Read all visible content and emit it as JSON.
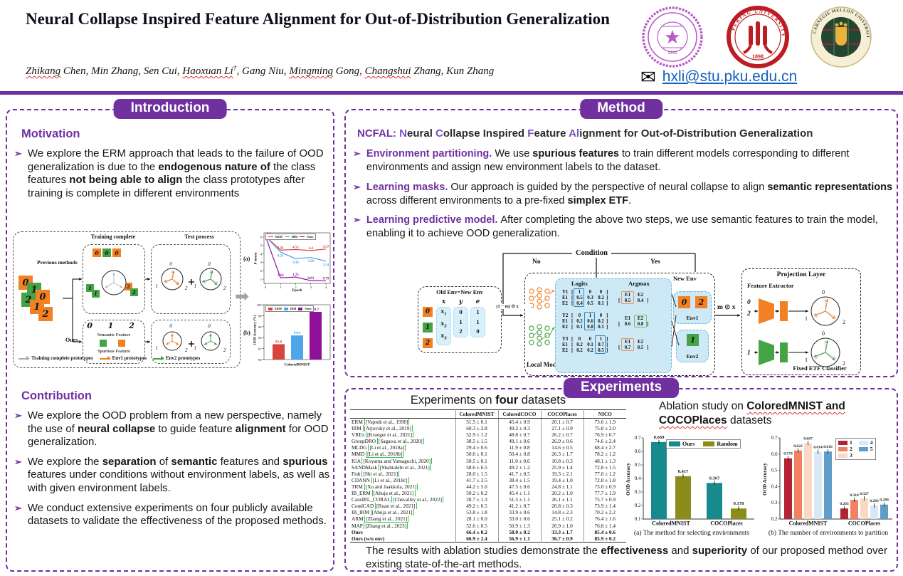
{
  "header": {
    "title": "Neural Collapse Inspired Feature Alignment for Out-of-Distribution Generalization",
    "author_segments": [
      {
        "t": "Zhikang",
        "w": true
      },
      {
        "t": " Chen, Min Zhang, Sen Cui, "
      },
      {
        "t": "Haoxuan Li",
        "w": true
      },
      {
        "t": "†",
        "sup": true
      },
      {
        "t": ", Gang Niu, "
      },
      {
        "t": "Mingming",
        "w": true
      },
      {
        "t": " Gong, "
      },
      {
        "t": "Changshui",
        "w": true
      },
      {
        "t": " Zhang, Kun Zhang"
      }
    ],
    "email": "hxli@stu.pku.edu.cn",
    "email_icon": "✉",
    "logos": [
      {
        "name": "Tsinghua University",
        "year": "1911",
        "ring": "TSINGHUA UNIVERSITY"
      },
      {
        "name": "Peking University",
        "year": "1898",
        "ring": "PEKING UNIVERSITY"
      },
      {
        "name": "Carnegie Mellon University",
        "year": "",
        "ring": "CARNEGIE MELLON UNIVERSITY"
      }
    ]
  },
  "intro": {
    "badge": "Introduction",
    "motivation_title": "Motivation",
    "motivation_bullet": "We explore the ERM approach that leads to the failure of OOD generalization is due to the **endogenous nature of** the class features **not being able to align** the class prototypes after training is complete in different environments",
    "contribution_title": "Contribution",
    "contribution_bullets": [
      "We explore the OOD problem from a new perspective, namely the use of **neural collapse** to guide feature **alignment** for OOD generalization.",
      "We explore the **separation** of **semantic** features and **spurious** features under conditions without environment labels, as well as with given environment labels.",
      "We conduct extensive experiments on four publicly available datasets to validate the effectiveness of the proposed methods."
    ],
    "figure": {
      "training_complete": "Training complete",
      "test_process": "Test process",
      "previous_methods": "Previous methods",
      "ours": "Ours",
      "semantic_feature": "Semantic Feature",
      "spurious_feature": "Spurious Feature",
      "semantic_digits": [
        "0",
        "1",
        "2"
      ],
      "stack_tiles": [
        "0o",
        "1g",
        "0o",
        "2g",
        "1o",
        "2o"
      ],
      "prev_top": [
        "0o",
        "0g",
        "0o"
      ],
      "prev_left": [
        "1g",
        "1g"
      ],
      "prev_right": [
        "2o",
        "2g"
      ],
      "arrow_icon": "➡",
      "legend": [
        {
          "label": "Training complete prototypes",
          "color": "#ababab"
        },
        {
          "label": "Env1 prototypes",
          "color": "#F28124"
        },
        {
          "label": "Env2 prototypes",
          "color": "#44A344"
        }
      ]
    }
  },
  "method": {
    "badge": "Method",
    "ncfal_prefix": "NCFAL:",
    "ncfal_segments": [
      {
        "t": "N",
        "h": true
      },
      {
        "t": "eural "
      },
      {
        "t": "C",
        "h": true
      },
      {
        "t": "ollapse Inspired "
      },
      {
        "t": "F",
        "h": true
      },
      {
        "t": "eature "
      },
      {
        "t": "Al",
        "h": true
      },
      {
        "t": "ignment for Out-of-Distribution Generalization"
      }
    ],
    "bullets": [
      {
        "lead": "Environment partitioning.",
        "text": "We use **spurious features** to train different models corresponding to different environments and assign new environment labels to the dataset."
      },
      {
        "lead": "Learning masks.",
        "text": "Our approach is guided by the perspective of neural collapse to align **semantic representations** across different environments to a pre-fixed **simplex ETF**."
      },
      {
        "lead": "Learning predictive model.",
        "text": "After completing the above two steps, we use semantic features to train the model, enabling it to achieve OOD generalization."
      }
    ],
    "diagram": {
      "condition": "Condition",
      "no": "No",
      "yes": "Yes",
      "old_env_label": "Old Env=New Env",
      "env_table": {
        "digit_tiles": [
          "0o",
          "1g",
          "2o"
        ],
        "headers": [
          "x",
          "y",
          "e"
        ],
        "col_x": [
          "x1",
          "x2",
          "x3"
        ],
        "col_y": [
          "0",
          "1",
          "2"
        ],
        "col_e": [
          "1",
          "1",
          "0"
        ]
      },
      "mask_out": "(1 − m) ⊙ x",
      "local_model": "Local Model",
      "logits_title": "Logits",
      "argmax_title": "Argmax",
      "new_env": "New Env",
      "groups": [
        {
          "labels": [
            "Y1",
            "E1",
            "E2"
          ],
          "rows": [
            [
              "1",
              "0",
              "0"
            ],
            [
              "0.5",
              "0.3",
              "0.2"
            ],
            [
              "0.4",
              "0.5",
              "0.1"
            ]
          ],
          "hl": 0,
          "am": {
            "headers": [
              "E1",
              "E2"
            ],
            "values": [
              "0.5",
              "0.4"
            ],
            "hl": 0,
            "color": "#E8955C"
          }
        },
        {
          "labels": [
            "Y2",
            "E1",
            "E2"
          ],
          "rows": [
            [
              "0",
              "1",
              "0"
            ],
            [
              "0.2",
              "0.6",
              "0.2"
            ],
            [
              "0.1",
              "0.8",
              "0.1"
            ]
          ],
          "hl": 1,
          "am": {
            "headers": [
              "E1",
              "E2"
            ],
            "values": [
              "0.6",
              "0.8"
            ],
            "hl": 1,
            "color": "#7CBF6B"
          }
        },
        {
          "labels": [
            "Y3",
            "E1",
            "E2"
          ],
          "rows": [
            [
              "0",
              "0",
              "1"
            ],
            [
              "0.2",
              "0.1",
              "0.7"
            ],
            [
              "0.2",
              "0.2",
              "0.5"
            ]
          ],
          "hl": 2,
          "am": {
            "headers": [
              "E1",
              "E2"
            ],
            "values": [
              "0.7",
              "0.5"
            ],
            "hl": 0,
            "color": "#E8955C"
          }
        }
      ],
      "env1": {
        "label": "Env1",
        "tiles": [
          "0o",
          "2o"
        ]
      },
      "env2": {
        "label": "Env2",
        "tiles": [
          "1g"
        ]
      },
      "mask_in": "m ⊙ x",
      "projection_layer": "Projection Layer",
      "feature_extractor": "Feature Extractor",
      "fixed_etf": "Fixed ETF Classifier",
      "etf_digits": [
        "0",
        "1",
        "2"
      ],
      "input_digits_top": [
        "0",
        "2"
      ],
      "input_digits_bottom": [
        "1"
      ]
    }
  },
  "experiments": {
    "badge": "Experiments",
    "table_heading": "Experiments on **four** datasets",
    "ablation_heading": "Ablation study on **ColoredMNIST and COCOPlaces** datasets",
    "conclusion": "The results with ablation studies demonstrate the **effectiveness** and **superiority** of our proposed method over existing state-of-the-art methods.",
    "table": {
      "columns": [
        "",
        "ColoredMNIST",
        "ColoredCOCO",
        "COCOPlaces",
        "NICO"
      ],
      "rows": [
        {
          "method": "ERM",
          "cite": "[Vapnik et al., 1998]",
          "vals": [
            "51.5 ± 0.1",
            "45.4 ± 0.9",
            "20.1 ± 0.7",
            "73.6 ± 1.9"
          ]
        },
        {
          "method": "IRM",
          "cite": "[Arjovsky et al., 2019]",
          "vals": [
            "60.3 ± 2.8",
            "49.2 ± 0.3",
            "27.1 ± 0.9",
            "75.8 ± 2.0"
          ]
        },
        {
          "method": "VREx",
          "cite": "[Krueger et al., 2021]",
          "vals": [
            "52.9 ± 1.2",
            "48.8 ± 0.7",
            "26.2 ± 0.7",
            "76.9 ± 0.7"
          ]
        },
        {
          "method": "GroupDRO",
          "cite": "[Sagawa et al., 2020]",
          "vals": [
            "38.5 ± 1.5",
            "49.1 ± 0.6",
            "26.9 ± 0.6",
            "74.6 ± 2.4"
          ]
        },
        {
          "method": "MLDG",
          "cite": "[Li et al., 2018a]",
          "vals": [
            "29.4 ± 0.6",
            "11.9 ± 0.8",
            "14.6 ± 0.5",
            "68.4 ± 2.7"
          ]
        },
        {
          "method": "MMD",
          "cite": "[Li et al., 2018b]",
          "vals": [
            "50.6 ± 0.1",
            "50.4 ± 0.8",
            "26.3 ± 1.7",
            "78.2 ± 1.2"
          ]
        },
        {
          "method": "IGA",
          "cite": "[Koyama and Yamaguchi, 2020]",
          "vals": [
            "50.5 ± 0.1",
            "11.0 ± 0.6",
            "10.8 ± 0.3",
            "48.1 ± 1.3"
          ]
        },
        {
          "method": "SANDMask",
          "cite": "[Shahtalebi et al., 2021]",
          "vals": [
            "58.6 ± 6.5",
            "49.2 ± 1.2",
            "25.9 ± 1.4",
            "72.8 ± 1.5"
          ]
        },
        {
          "method": "Fish",
          "cite": "[Shi et al., 2021]",
          "vals": [
            "28.0 ± 1.5",
            "41.7 ± 0.5",
            "19.3 ± 2.1",
            "77.0 ± 1.2"
          ]
        },
        {
          "method": "CDANN",
          "cite": "[Li et al., 2018c]",
          "vals": [
            "41.7 ± 3.5",
            "38.4 ± 1.5",
            "19.4 ± 1.0",
            "72.8 ± 1.8"
          ]
        },
        {
          "method": "TRM",
          "cite": "[Xu and Jaakkola, 2021]",
          "vals": [
            "44.2 ± 5.0",
            "47.5 ± 0.6",
            "24.8 ± 1.1",
            "73.0 ± 0.9"
          ]
        },
        {
          "method": "IB_ERM",
          "cite": "[Ahuja et al., 2021]",
          "vals": [
            "50.2 ± 0.2",
            "45.4 ± 1.1",
            "20.2 ± 1.0",
            "77.7 ± 1.9"
          ]
        },
        {
          "method": "CausIRL_CORAL",
          "cite": "[Chevalley et al., 2022]",
          "vals": [
            "28.7 ± 1.3",
            "51.5 ± 1.1",
            "26.1 ± 1.1",
            "75.7 ± 0.9"
          ]
        },
        {
          "method": "CondCAD",
          "cite": "[Ruan et al., 2021]",
          "vals": [
            "49.2 ± 0.5",
            "41.2 ± 0.7",
            "20.8 ± 0.3",
            "73.9 ± 1.4"
          ]
        },
        {
          "method": "IB_IRM",
          "cite": "[Ahuja et al., 2021]",
          "vals": [
            "53.8 ± 1.8",
            "33.9 ± 0.6",
            "14.8 ± 2.3",
            "70.2 ± 2.2"
          ]
        },
        {
          "method": "ARM",
          "cite": "[Zhang et al., 2021]",
          "vals": [
            "28.1 ± 0.0",
            "33.0 ± 0.6",
            "25.1 ± 0.2",
            "76.4 ± 1.6"
          ]
        },
        {
          "method": "MAP",
          "cite": "[Zhang et al., 2023]",
          "vals": [
            "52.6 ± 0.5",
            "50.9 ± 1.3",
            "26.9 ± 1.0",
            "76.8 ± 1.4"
          ]
        },
        {
          "method": "Ours",
          "cite": "",
          "bold": true,
          "vals": [
            "66.4 ± 0.2",
            "58.0 ± 0.2",
            "33.3 ± 1.7",
            "85.4 ± 0.6"
          ]
        },
        {
          "method": "Ours (w/o env)",
          "cite": "",
          "bold": true,
          "vals": [
            "66.9 ± 2.4",
            "56.9 ± 1.1",
            "36.7 ± 0.9",
            "85.9 ± 0.2"
          ]
        }
      ]
    }
  },
  "chart_data": [
    {
      "id": "fnorm-line",
      "type": "line",
      "panel": "(a)",
      "title": "",
      "xlabel": "Epoch",
      "ylabel": "F-norm",
      "x": [
        0,
        1,
        2,
        3,
        4
      ],
      "xticks": [
        0,
        1,
        2,
        3,
        4
      ],
      "ylim": [
        0.5,
        6.5
      ],
      "yticks": [
        1,
        2,
        3,
        4,
        5,
        6
      ],
      "series": [
        {
          "name": "ERM",
          "color": "#D6453D",
          "values": [
            6.1,
            4.45,
            4.52,
            4.4,
            4.57
          ],
          "labels": [
            "6.1",
            "4.45",
            "4.52",
            "4.4",
            "4.57"
          ]
        },
        {
          "name": "IRM",
          "color": "#4DA6E8",
          "values": [
            6.1,
            4.21,
            3.43,
            3.58,
            3.14
          ],
          "labels": [
            "",
            "4.21",
            "3.43",
            "3.58",
            "3.14"
          ]
        },
        {
          "name": "Ours",
          "color": "#90109B",
          "values": [
            6.1,
            1.16,
            1.25,
            0.83,
            0.79
          ],
          "labels": [
            "",
            "1.16",
            "1.25",
            "0.83",
            "0.79"
          ]
        }
      ]
    },
    {
      "id": "oodacc-bar",
      "type": "bar",
      "panel": "(b)",
      "title": "",
      "xlabel": "",
      "ylabel": "OOD Accuracy (%)",
      "categories": [
        "ColoredMNIST"
      ],
      "ylim": [
        90,
        100
      ],
      "yticks": [
        90,
        92,
        94,
        96,
        98,
        100
      ],
      "series": [
        {
          "name": "ERM",
          "color": "#D6453D",
          "values": [
            92.8
          ]
        },
        {
          "name": "IRM",
          "color": "#4DA6E8",
          "values": [
            94.4
          ]
        },
        {
          "name": "Ours",
          "color": "#90109B",
          "values": [
            98.7
          ]
        }
      ]
    },
    {
      "id": "ablation-method",
      "type": "bar",
      "caption": "(a) The method for selecting environments",
      "ylabel": "OOD Accuracy",
      "categories": [
        "ColoredMNIST",
        "COCOPlaces"
      ],
      "ylim": [
        0.1,
        0.7
      ],
      "yticks": [
        0.1,
        0.2,
        0.3,
        0.4,
        0.5,
        0.6,
        0.7
      ],
      "series": [
        {
          "name": "Ours",
          "color": "#178A8E",
          "values": [
            0.669,
            0.367
          ]
        },
        {
          "name": "Random",
          "color": "#8C8C1A",
          "values": [
            0.417,
            0.178
          ]
        }
      ]
    },
    {
      "id": "ablation-number",
      "type": "bar",
      "caption": "(b) The number of environments to partition",
      "ylabel": "OOD Accuracy",
      "categories": [
        "ColoredMNIST",
        "COCOPlaces"
      ],
      "ylim": [
        0.2,
        0.7
      ],
      "yticks": [
        0.2,
        0.3,
        0.4,
        0.5,
        0.6,
        0.7
      ],
      "series": [
        {
          "name": "1",
          "color": "#B22335",
          "values": [
            0.574,
            0.265
          ]
        },
        {
          "name": "2",
          "color": "#F2815F",
          "values": [
            0.622,
            0.318
          ]
        },
        {
          "name": "3",
          "color": "#FAD9C4",
          "values": [
            0.667,
            0.327
          ]
        },
        {
          "name": "4",
          "color": "#D9E8F5",
          "values": [
            0.614,
            0.283
          ]
        },
        {
          "name": "5",
          "color": "#5F9EC9",
          "values": [
            0.616,
            0.289
          ]
        }
      ]
    }
  ]
}
